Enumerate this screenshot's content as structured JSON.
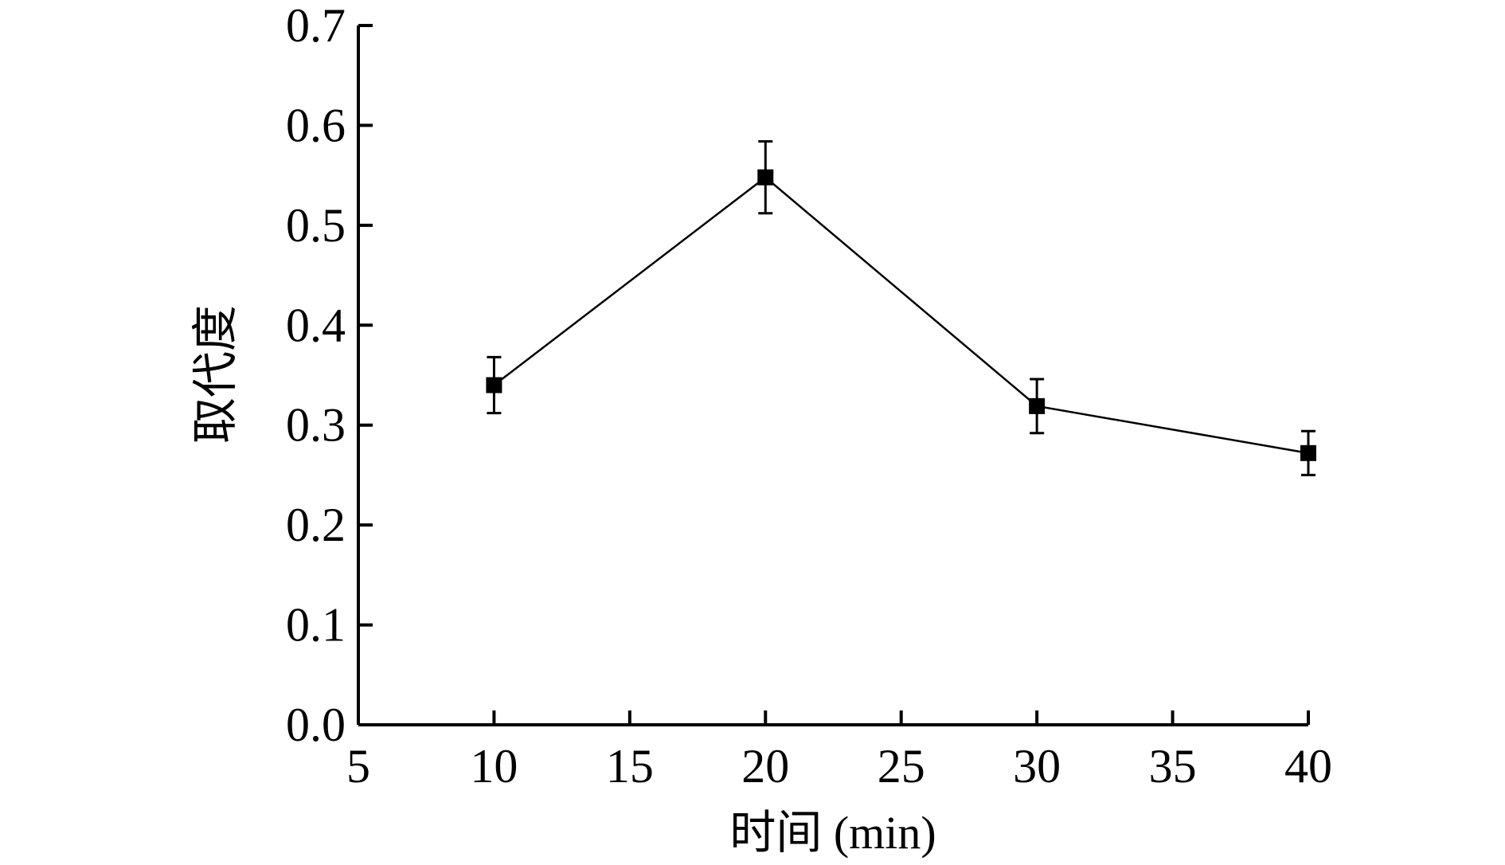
{
  "chart_data": {
    "type": "line",
    "title": "",
    "xlabel": "时间 (min)",
    "ylabel": "取代度",
    "xlim": [
      5,
      40
    ],
    "ylim": [
      0,
      0.7
    ],
    "x_ticks": [
      "5",
      "10",
      "15",
      "20",
      "25",
      "30",
      "35",
      "40"
    ],
    "y_ticks": [
      "0.0",
      "0.1",
      "0.2",
      "0.3",
      "0.4",
      "0.5",
      "0.6",
      "0.7"
    ],
    "grid": false,
    "legend": "none",
    "series": [
      {
        "x": [
          10,
          20,
          30,
          40
        ],
        "y": [
          0.34,
          0.548,
          0.319,
          0.272
        ],
        "error": [
          0.028,
          0.036,
          0.027,
          0.022
        ],
        "marker": "square",
        "color": "#000000"
      }
    ]
  }
}
